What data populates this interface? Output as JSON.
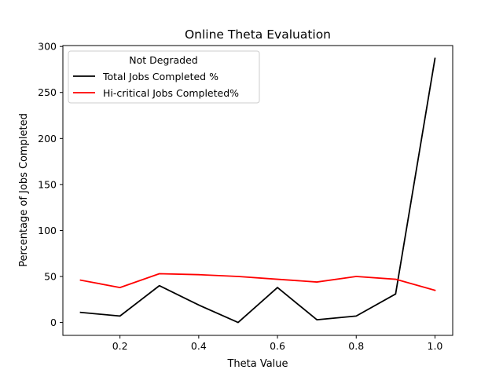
{
  "chart_data": {
    "type": "line",
    "title": "Online Theta Evaluation",
    "xlabel": "Theta Value",
    "ylabel": "Percentage of Jobs Completed",
    "x": [
      0.1,
      0.2,
      0.3,
      0.4,
      0.5,
      0.6,
      0.7,
      0.8,
      0.9,
      1.0
    ],
    "xlim": [
      0.055,
      1.045
    ],
    "ylim": [
      -14,
      301
    ],
    "xticks": [
      0.2,
      0.4,
      0.6,
      0.8,
      1.0
    ],
    "xtick_labels": [
      "0.2",
      "0.4",
      "0.6",
      "0.8",
      "1.0"
    ],
    "yticks": [
      0,
      50,
      100,
      150,
      200,
      250,
      300
    ],
    "ytick_labels": [
      "0",
      "50",
      "100",
      "150",
      "200",
      "250",
      "300"
    ],
    "grid": false,
    "legend": {
      "title": "Not Degraded",
      "placement": "top-left"
    },
    "series": [
      {
        "name": "Total Jobs Completed %",
        "color": "#000000",
        "values": [
          11,
          7,
          40,
          19,
          0,
          38,
          3,
          7,
          31,
          287
        ]
      },
      {
        "name": "Hi-critical Jobs Completed%",
        "color": "#ff0000",
        "values": [
          46,
          38,
          53,
          52,
          50,
          47,
          44,
          50,
          47,
          35
        ]
      }
    ]
  }
}
